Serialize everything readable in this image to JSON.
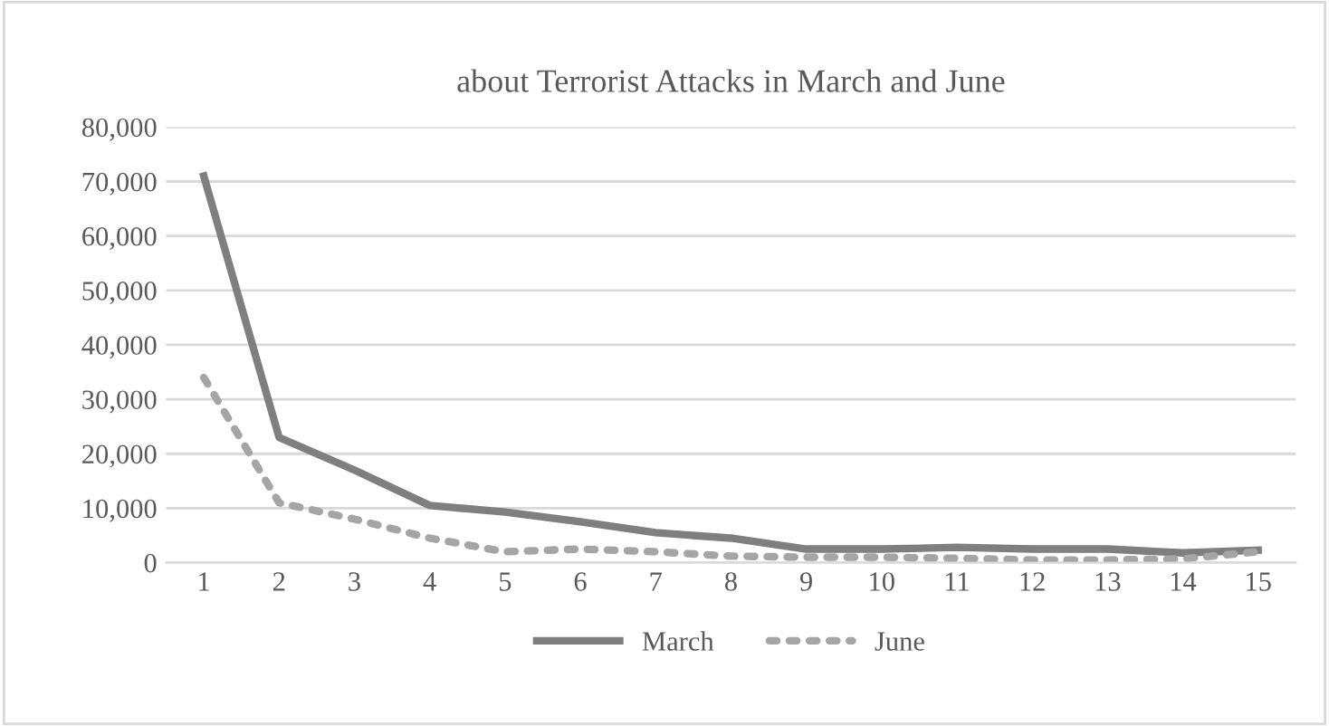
{
  "chart_data": {
    "type": "line",
    "title": "about Terrorist Attacks in March and June",
    "categories": [
      "1",
      "2",
      "3",
      "4",
      "5",
      "6",
      "7",
      "8",
      "9",
      "10",
      "11",
      "12",
      "13",
      "14",
      "15"
    ],
    "series": [
      {
        "name": "March",
        "color": "#7f7f7f",
        "line_style": "solid",
        "values": [
          71000,
          23000,
          17000,
          10500,
          9300,
          7500,
          5500,
          4500,
          2500,
          2500,
          2800,
          2500,
          2500,
          1800,
          2300
        ]
      },
      {
        "name": "June",
        "color": "#a5a5a5",
        "line_style": "dotted",
        "values": [
          34000,
          11000,
          8000,
          4500,
          2000,
          2500,
          2000,
          1200,
          1000,
          1000,
          800,
          500,
          500,
          700,
          2000
        ]
      }
    ],
    "ylim": [
      0,
      80000
    ],
    "yticks": [
      {
        "value": 0,
        "label": "0"
      },
      {
        "value": 10000,
        "label": "10,000"
      },
      {
        "value": 20000,
        "label": "20,000"
      },
      {
        "value": 30000,
        "label": "30,000"
      },
      {
        "value": 40000,
        "label": "40,000"
      },
      {
        "value": 50000,
        "label": "50,000"
      },
      {
        "value": 60000,
        "label": "60,000"
      },
      {
        "value": 70000,
        "label": "70,000"
      },
      {
        "value": 80000,
        "label": "80,000"
      }
    ],
    "grid": "y",
    "legend": "bottom",
    "marker": "none"
  }
}
